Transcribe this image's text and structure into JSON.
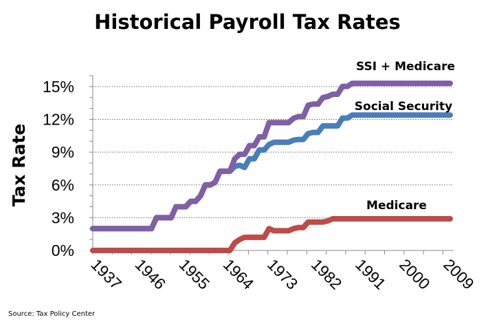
{
  "chart_data": {
    "type": "line",
    "title": "Historical Payroll Tax Rates",
    "xlabel": "",
    "ylabel": "Tax Rate",
    "source": "Source: Tax Policy Center",
    "xlim": [
      1937,
      2010
    ],
    "ylim": [
      0,
      16
    ],
    "x_tick_labels": [
      "1937",
      "1946",
      "1955",
      "1964",
      "1973",
      "1982",
      "1991",
      "2000",
      "2009"
    ],
    "y_ticks": [
      0,
      3,
      6,
      9,
      12,
      15
    ],
    "y_tick_labels": [
      "0%",
      "3%",
      "6%",
      "9%",
      "12%",
      "15%"
    ],
    "grid": "horizontal dotted",
    "legend": "inline labels at right end of lines",
    "x": [
      1937,
      1938,
      1939,
      1940,
      1941,
      1942,
      1943,
      1944,
      1945,
      1946,
      1947,
      1948,
      1949,
      1950,
      1951,
      1952,
      1953,
      1954,
      1955,
      1956,
      1957,
      1958,
      1959,
      1960,
      1961,
      1962,
      1963,
      1964,
      1965,
      1966,
      1967,
      1968,
      1969,
      1970,
      1971,
      1972,
      1973,
      1974,
      1975,
      1976,
      1977,
      1978,
      1979,
      1980,
      1981,
      1982,
      1983,
      1984,
      1985,
      1986,
      1987,
      1988,
      1989,
      1990,
      1991,
      1992,
      1993,
      1994,
      1995,
      1996,
      1997,
      1998,
      1999,
      2000,
      2001,
      2002,
      2003,
      2004,
      2005,
      2006,
      2007,
      2008,
      2009,
      2010
    ],
    "series": [
      {
        "name": "SSI + Medicare",
        "color": "#7f5fa6",
        "values": [
          2,
          2,
          2,
          2,
          2,
          2,
          2,
          2,
          2,
          2,
          2,
          2,
          2,
          3,
          3,
          3,
          3,
          4,
          4,
          4,
          4.5,
          4.5,
          5,
          6,
          6,
          6.25,
          7.25,
          7.25,
          7.25,
          8.4,
          8.8,
          8.8,
          9.6,
          9.6,
          10.4,
          10.4,
          11.7,
          11.7,
          11.7,
          11.7,
          11.7,
          12.1,
          12.26,
          12.26,
          13.3,
          13.4,
          13.4,
          14.0,
          14.1,
          14.3,
          14.3,
          15.02,
          15.02,
          15.3,
          15.3,
          15.3,
          15.3,
          15.3,
          15.3,
          15.3,
          15.3,
          15.3,
          15.3,
          15.3,
          15.3,
          15.3,
          15.3,
          15.3,
          15.3,
          15.3,
          15.3,
          15.3,
          15.3,
          15.3
        ]
      },
      {
        "name": "Social Security",
        "color": "#4a7ebb",
        "values": [
          2,
          2,
          2,
          2,
          2,
          2,
          2,
          2,
          2,
          2,
          2,
          2,
          2,
          3,
          3,
          3,
          3,
          4,
          4,
          4,
          4.5,
          4.5,
          5,
          6,
          6,
          6.25,
          7.25,
          7.25,
          7.25,
          7.7,
          7.8,
          7.6,
          8.4,
          8.4,
          9.2,
          9.2,
          9.7,
          9.9,
          9.9,
          9.9,
          9.9,
          10.1,
          10.16,
          10.16,
          10.7,
          10.8,
          10.8,
          11.4,
          11.4,
          11.4,
          11.4,
          12.12,
          12.12,
          12.4,
          12.4,
          12.4,
          12.4,
          12.4,
          12.4,
          12.4,
          12.4,
          12.4,
          12.4,
          12.4,
          12.4,
          12.4,
          12.4,
          12.4,
          12.4,
          12.4,
          12.4,
          12.4,
          12.4,
          12.4
        ]
      },
      {
        "name": "Medicare",
        "color": "#be4b48",
        "values": [
          0,
          0,
          0,
          0,
          0,
          0,
          0,
          0,
          0,
          0,
          0,
          0,
          0,
          0,
          0,
          0,
          0,
          0,
          0,
          0,
          0,
          0,
          0,
          0,
          0,
          0,
          0,
          0,
          0,
          0.7,
          1.0,
          1.2,
          1.2,
          1.2,
          1.2,
          1.2,
          2.0,
          1.8,
          1.8,
          1.8,
          1.8,
          2.0,
          2.1,
          2.1,
          2.6,
          2.6,
          2.6,
          2.6,
          2.7,
          2.9,
          2.9,
          2.9,
          2.9,
          2.9,
          2.9,
          2.9,
          2.9,
          2.9,
          2.9,
          2.9,
          2.9,
          2.9,
          2.9,
          2.9,
          2.9,
          2.9,
          2.9,
          2.9,
          2.9,
          2.9,
          2.9,
          2.9,
          2.9,
          2.9
        ]
      }
    ]
  }
}
